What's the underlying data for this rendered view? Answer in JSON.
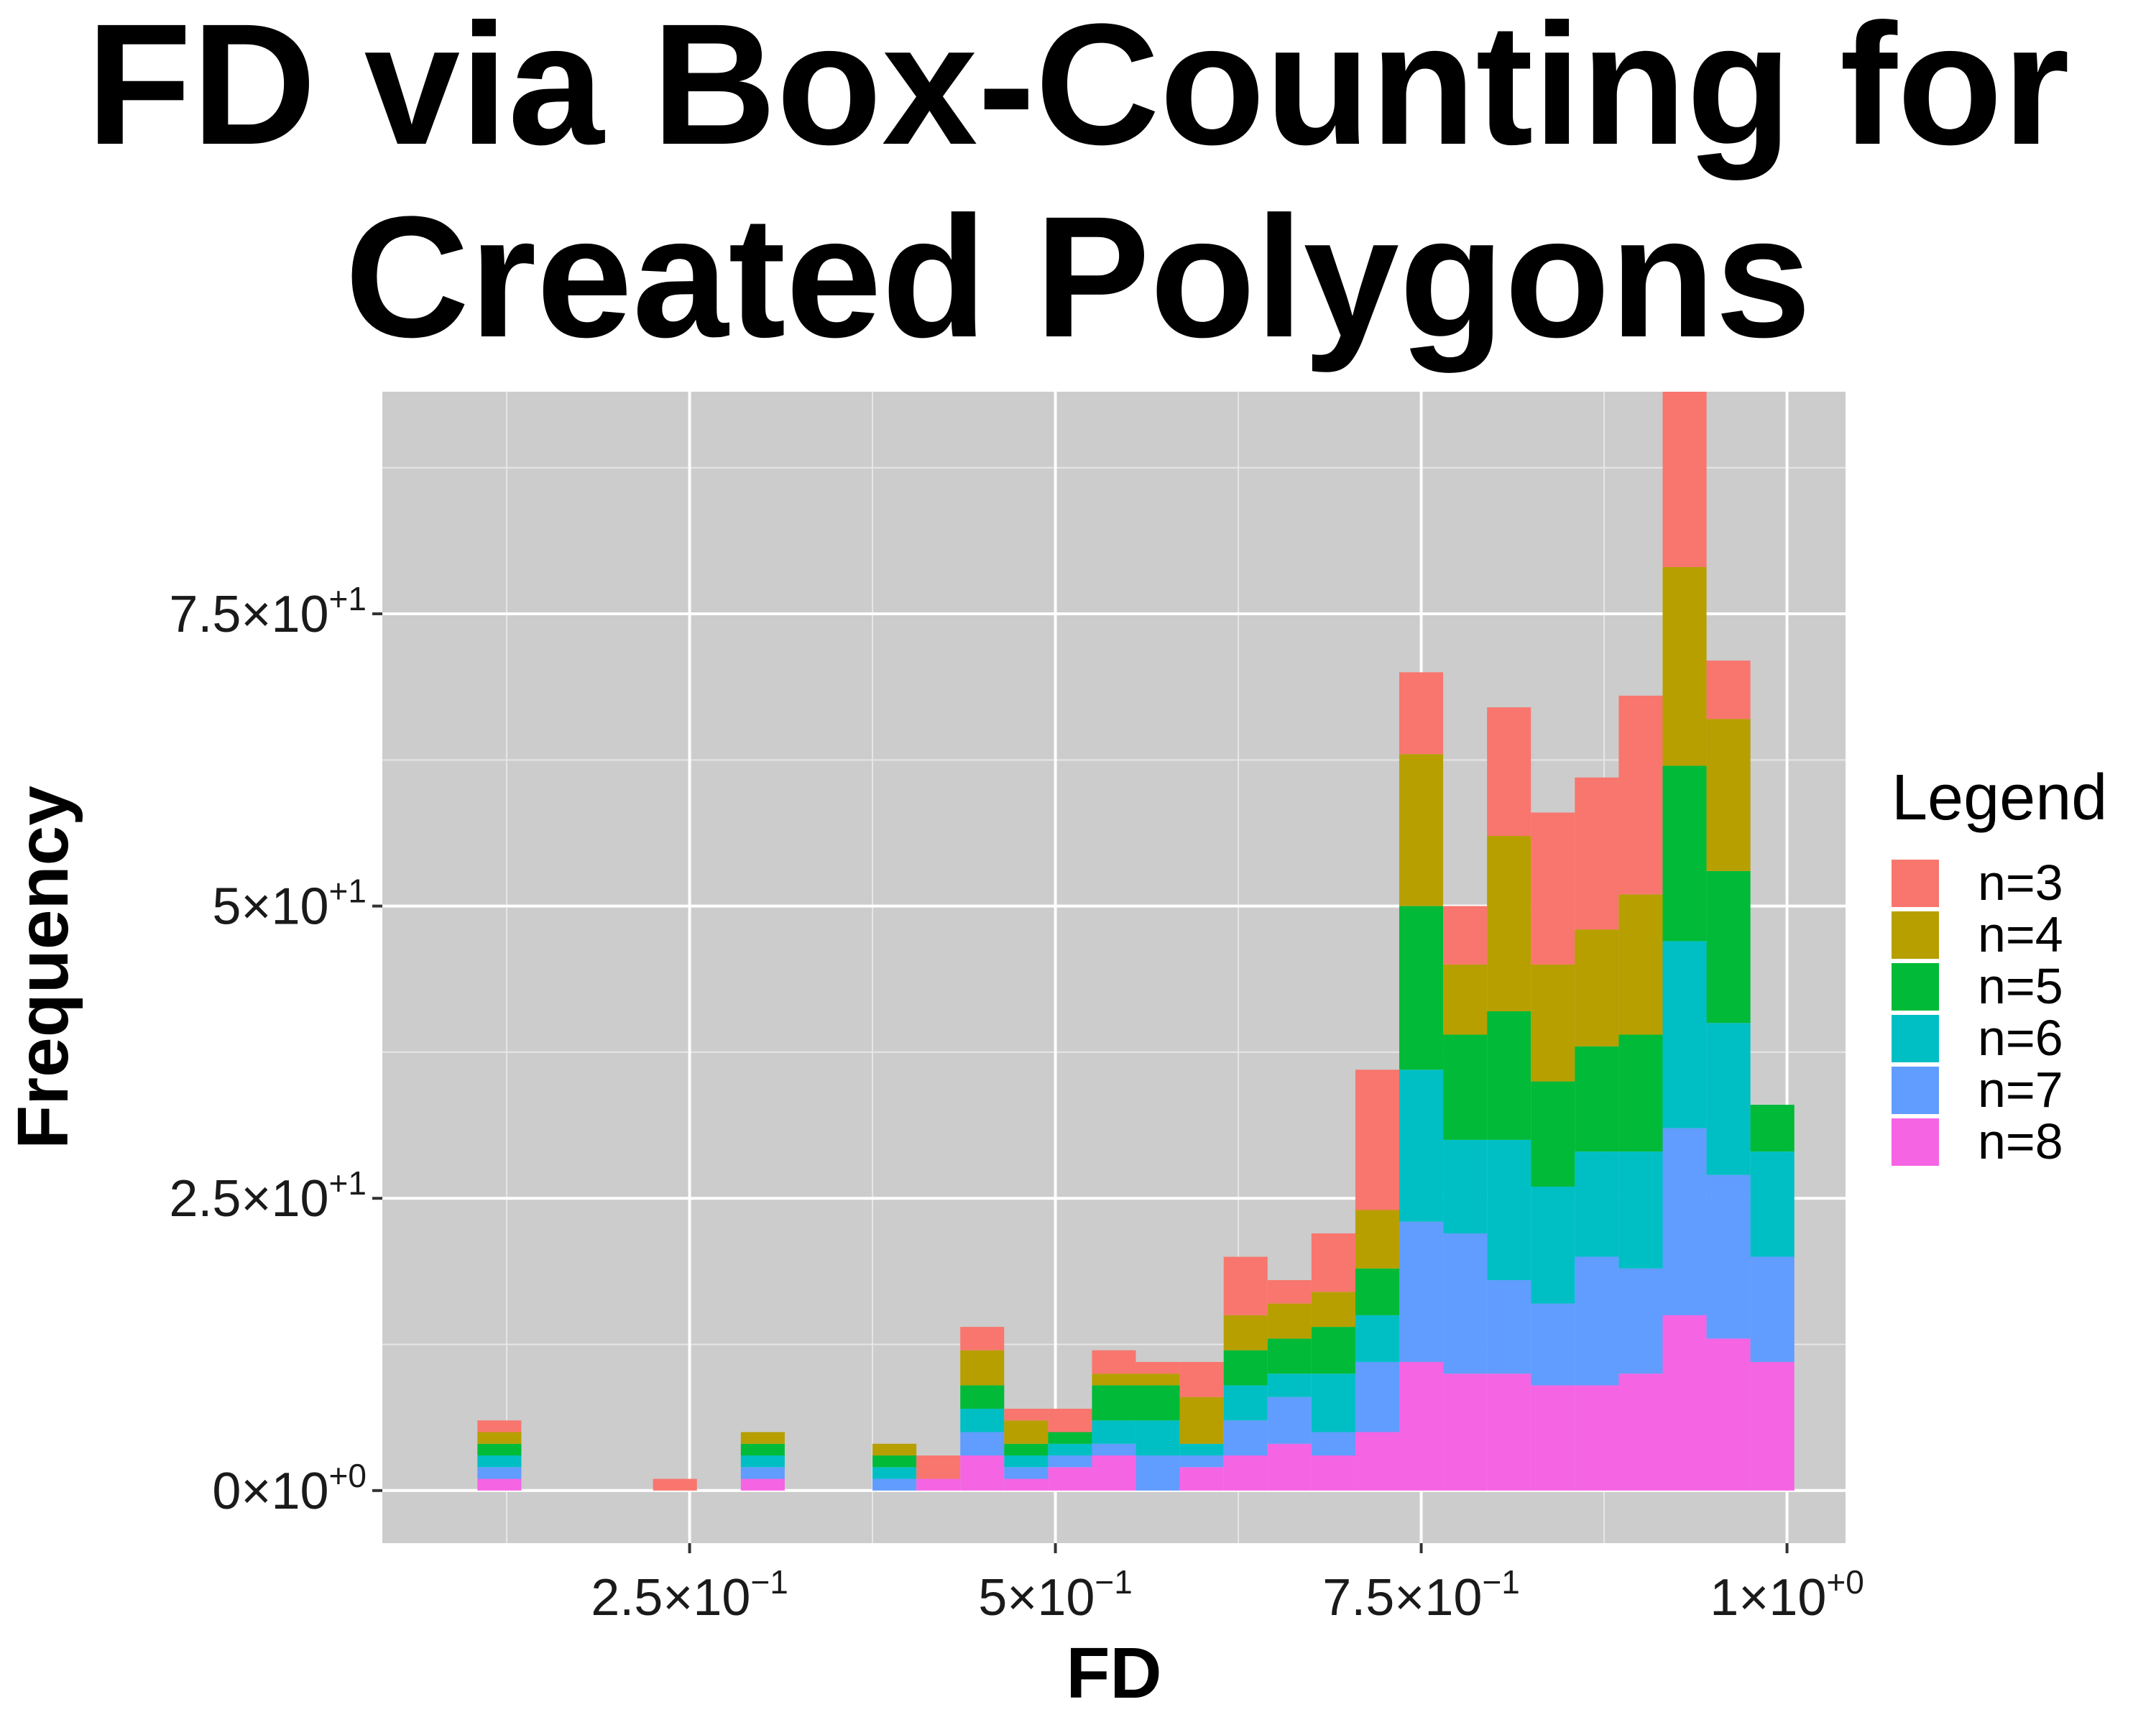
{
  "chart_data": {
    "type": "bar",
    "stacked": true,
    "title": "FD via Box-Counting for Created Polygons",
    "xlabel": "FD",
    "ylabel": "Frequency",
    "xlim": [
      0.04,
      1.04
    ],
    "ylim": [
      -4.5,
      94
    ],
    "bin_width": 0.03,
    "x_ticks": [
      {
        "value": 0.25,
        "mantissa": "2.5",
        "exponent": "−1"
      },
      {
        "value": 0.5,
        "mantissa": "5",
        "exponent": "−1"
      },
      {
        "value": 0.75,
        "mantissa": "7.5",
        "exponent": "−1"
      },
      {
        "value": 1.0,
        "mantissa": "1",
        "exponent": "+0"
      }
    ],
    "y_ticks": [
      {
        "value": 0,
        "mantissa": "0",
        "exponent": "+0"
      },
      {
        "value": 25,
        "mantissa": "2.5",
        "exponent": "+1"
      },
      {
        "value": 50,
        "mantissa": "5",
        "exponent": "+1"
      },
      {
        "value": 75,
        "mantissa": "7.5",
        "exponent": "+1"
      }
    ],
    "grid": true,
    "legend": {
      "title": "Legend",
      "position": "right"
    },
    "bins": [
      0.12,
      0.24,
      0.3,
      0.39,
      0.42,
      0.45,
      0.48,
      0.51,
      0.54,
      0.57,
      0.6,
      0.63,
      0.66,
      0.69,
      0.72,
      0.75,
      0.78,
      0.81,
      0.84,
      0.87,
      0.9,
      0.93,
      0.96,
      0.99
    ],
    "series": [
      {
        "name": "n=8",
        "color": "#F564E3",
        "values": [
          1,
          0,
          1,
          0,
          1,
          3,
          1,
          2,
          3,
          0,
          2,
          3,
          4,
          3,
          5,
          11,
          10,
          10,
          9,
          9,
          10,
          15,
          13,
          11
        ]
      },
      {
        "name": "n=7",
        "color": "#619CFF",
        "values": [
          1,
          0,
          1,
          1,
          0,
          2,
          1,
          1,
          1,
          3,
          1,
          3,
          4,
          2,
          6,
          12,
          12,
          8,
          7,
          11,
          9,
          16,
          14,
          9
        ]
      },
      {
        "name": "n=6",
        "color": "#00BFC4",
        "values": [
          1,
          0,
          1,
          1,
          0,
          2,
          1,
          1,
          2,
          3,
          1,
          3,
          2,
          5,
          4,
          13,
          8,
          12,
          10,
          9,
          10,
          16,
          13,
          9
        ]
      },
      {
        "name": "n=5",
        "color": "#00BA38",
        "values": [
          1,
          0,
          1,
          1,
          0,
          2,
          1,
          1,
          3,
          3,
          0,
          3,
          3,
          4,
          4,
          14,
          9,
          11,
          9,
          9,
          10,
          15,
          13,
          4
        ]
      },
      {
        "name": "n=4",
        "color": "#B79F00",
        "values": [
          1,
          0,
          1,
          1,
          0,
          3,
          2,
          0,
          1,
          1,
          4,
          3,
          3,
          3,
          5,
          13,
          6,
          15,
          10,
          10,
          12,
          17,
          13,
          0
        ]
      },
      {
        "name": "n=3",
        "color": "#F8766D",
        "values": [
          1,
          1,
          0,
          0,
          2,
          2,
          1,
          2,
          2,
          1,
          3,
          5,
          2,
          5,
          12,
          7,
          5,
          11,
          13,
          13,
          17,
          15,
          5,
          0
        ]
      }
    ]
  }
}
